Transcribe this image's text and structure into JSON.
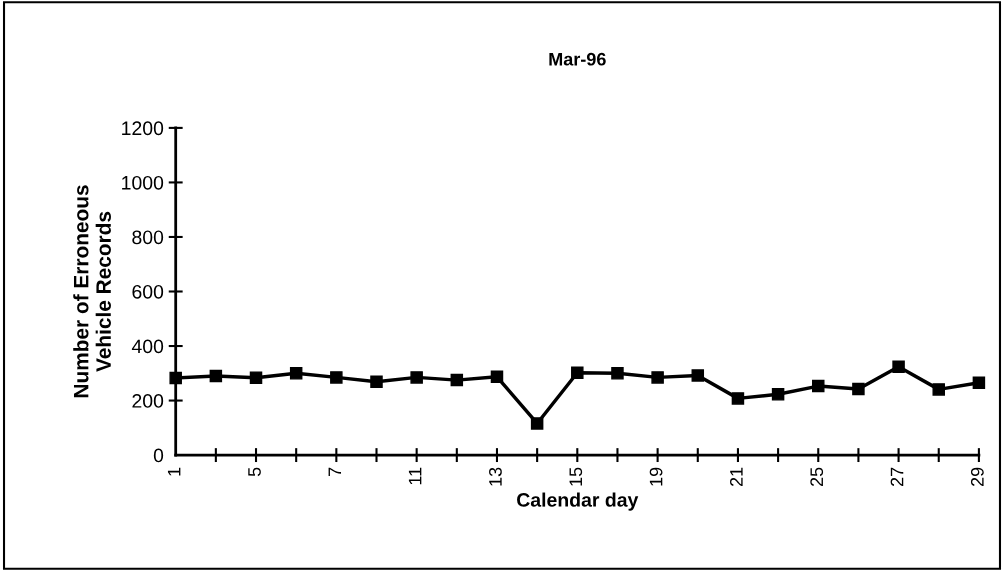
{
  "chart_data": {
    "type": "line",
    "title": "Mar-96",
    "xlabel": "Calendar day",
    "ylabel": "Number of Erroneous\nVehicle Records",
    "categories": [
      "1",
      null,
      "5",
      null,
      "7",
      null,
      "11",
      null,
      "13",
      null,
      "15",
      null,
      "19",
      null,
      "21",
      null,
      "25",
      null,
      "27",
      null,
      "29"
    ],
    "series": [
      {
        "color": "#000000",
        "values": [
          283,
          290,
          284,
          300,
          285,
          269,
          285,
          275,
          287,
          116,
          302,
          300,
          285,
          292,
          208,
          223,
          253,
          242,
          324,
          241,
          265
        ]
      }
    ],
    "ylim": [
      0,
      1200
    ],
    "yticks": [
      0,
      200,
      400,
      600,
      800,
      1000,
      1200
    ],
    "grid": false,
    "legend": false,
    "marker": "square",
    "line_style": "solid"
  }
}
